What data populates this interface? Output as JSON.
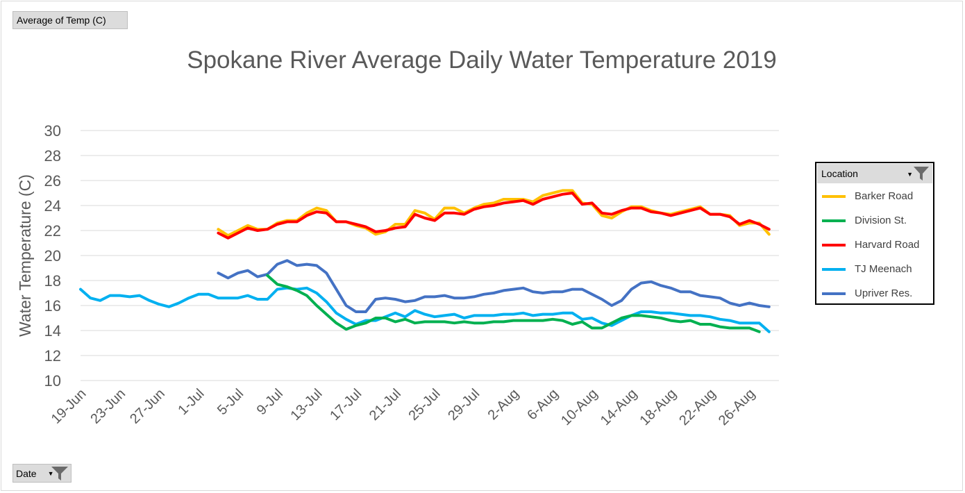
{
  "pivot": {
    "value_field": "Average of Temp (C)",
    "axis_field": "Date",
    "legend_field": "Location"
  },
  "chart_data": {
    "type": "line",
    "title": "Spokane River Average Daily Water Temperature 2019",
    "xlabel": "",
    "ylabel": "Water Temperature (C)",
    "ylim": [
      10,
      30
    ],
    "yticks": [
      10,
      12,
      14,
      16,
      18,
      20,
      22,
      24,
      26,
      28,
      30
    ],
    "grid": true,
    "legend_position": "right",
    "x_start": "2019-06-19",
    "x_end": "2019-08-29",
    "x_tick_labels": [
      "19-Jun",
      "23-Jun",
      "27-Jun",
      "1-Jul",
      "5-Jul",
      "9-Jul",
      "13-Jul",
      "17-Jul",
      "21-Jul",
      "25-Jul",
      "29-Jul",
      "2-Aug",
      "6-Aug",
      "10-Aug",
      "14-Aug",
      "18-Aug",
      "22-Aug",
      "26-Aug"
    ],
    "series": [
      {
        "name": "Barker Road",
        "color": "#FFC000",
        "start": "2019-07-03",
        "values": [
          22.1,
          21.6,
          22.0,
          22.4,
          22.1,
          22.1,
          22.6,
          22.8,
          22.8,
          23.4,
          23.8,
          23.6,
          22.7,
          22.7,
          22.4,
          22.2,
          21.7,
          21.9,
          22.5,
          22.5,
          23.6,
          23.4,
          22.9,
          23.8,
          23.8,
          23.4,
          23.8,
          24.1,
          24.2,
          24.5,
          24.5,
          24.5,
          24.3,
          24.8,
          25.0,
          25.2,
          25.2,
          24.2,
          24.1,
          23.2,
          23.0,
          23.5,
          23.9,
          23.9,
          23.6,
          23.4,
          23.3,
          23.5,
          23.7,
          23.9,
          23.3,
          23.3,
          23.2,
          22.4,
          22.6,
          22.6,
          21.7
        ]
      },
      {
        "name": "Division St.",
        "color": "#00B050",
        "start": "2019-07-08",
        "values": [
          18.4,
          17.7,
          17.5,
          17.2,
          16.8,
          16.0,
          15.3,
          14.6,
          14.1,
          14.4,
          14.6,
          15.0,
          15.0,
          14.7,
          14.9,
          14.6,
          14.7,
          14.7,
          14.7,
          14.6,
          14.7,
          14.6,
          14.6,
          14.7,
          14.7,
          14.8,
          14.8,
          14.8,
          14.8,
          14.9,
          14.8,
          14.5,
          14.7,
          14.2,
          14.2,
          14.6,
          15.0,
          15.2,
          15.2,
          15.1,
          15.0,
          14.8,
          14.7,
          14.8,
          14.5,
          14.5,
          14.3,
          14.2,
          14.2,
          14.2,
          13.9
        ]
      },
      {
        "name": "Harvard Road",
        "color": "#FF0000",
        "start": "2019-07-03",
        "values": [
          21.8,
          21.4,
          21.8,
          22.2,
          22.0,
          22.1,
          22.5,
          22.7,
          22.7,
          23.2,
          23.5,
          23.4,
          22.7,
          22.7,
          22.5,
          22.3,
          21.9,
          22.0,
          22.2,
          22.3,
          23.3,
          23.0,
          22.8,
          23.4,
          23.4,
          23.3,
          23.7,
          23.9,
          24.0,
          24.2,
          24.3,
          24.4,
          24.1,
          24.5,
          24.7,
          24.9,
          25.0,
          24.1,
          24.2,
          23.4,
          23.3,
          23.6,
          23.8,
          23.8,
          23.5,
          23.4,
          23.2,
          23.4,
          23.6,
          23.8,
          23.3,
          23.3,
          23.1,
          22.5,
          22.8,
          22.5,
          22.1
        ]
      },
      {
        "name": "TJ Meenach",
        "color": "#00B0F0",
        "start": "2019-06-19",
        "values": [
          17.3,
          16.6,
          16.4,
          16.8,
          16.8,
          16.7,
          16.8,
          16.4,
          16.1,
          15.9,
          16.2,
          16.6,
          16.9,
          16.9,
          16.6,
          16.6,
          16.6,
          16.8,
          16.5,
          16.5,
          17.3,
          17.4,
          17.3,
          17.4,
          17.0,
          16.3,
          15.4,
          14.9,
          14.5,
          14.8,
          14.8,
          15.1,
          15.4,
          15.1,
          15.6,
          15.3,
          15.1,
          15.2,
          15.3,
          15.0,
          15.2,
          15.2,
          15.2,
          15.3,
          15.3,
          15.4,
          15.2,
          15.3,
          15.3,
          15.4,
          15.4,
          14.9,
          15.0,
          14.6,
          14.4,
          14.8,
          15.2,
          15.5,
          15.5,
          15.4,
          15.4,
          15.3,
          15.2,
          15.2,
          15.1,
          14.9,
          14.8,
          14.6,
          14.6,
          14.6,
          13.9
        ]
      },
      {
        "name": "Upriver Res.",
        "color": "#4472C4",
        "start": "2019-07-03",
        "values": [
          18.6,
          18.2,
          18.6,
          18.8,
          18.3,
          18.5,
          19.3,
          19.6,
          19.2,
          19.3,
          19.2,
          18.6,
          17.3,
          16.0,
          15.5,
          15.5,
          16.5,
          16.6,
          16.5,
          16.3,
          16.4,
          16.7,
          16.7,
          16.8,
          16.6,
          16.6,
          16.7,
          16.9,
          17.0,
          17.2,
          17.3,
          17.4,
          17.1,
          17.0,
          17.1,
          17.1,
          17.3,
          17.3,
          16.9,
          16.5,
          16.0,
          16.4,
          17.3,
          17.8,
          17.9,
          17.6,
          17.4,
          17.1,
          17.1,
          16.8,
          16.7,
          16.6,
          16.2,
          16.0,
          16.2,
          16.0,
          15.9
        ]
      }
    ]
  }
}
